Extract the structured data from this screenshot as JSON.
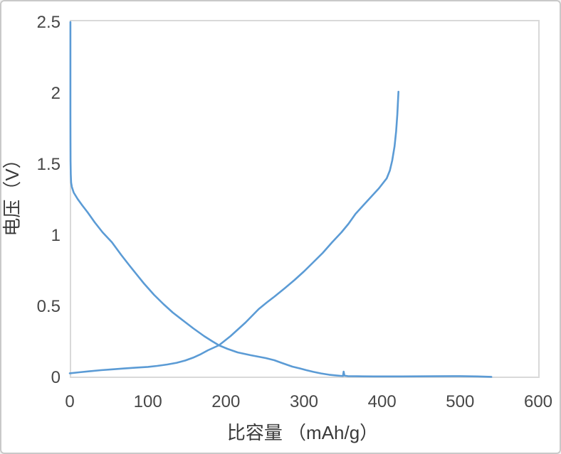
{
  "figure": {
    "background": "#ffffff",
    "frame_border_color": "#c9c9c9"
  },
  "chart_data": {
    "type": "line",
    "title": "",
    "xlabel": "比容量 （mAh/g）",
    "ylabel": "电压（V）",
    "xlim": [
      0,
      600
    ],
    "ylim": [
      0,
      2.5
    ],
    "x_tick_labels": [
      "0",
      "100",
      "200",
      "300",
      "400",
      "500",
      "600"
    ],
    "y_tick_labels": [
      "0",
      "0.5",
      "1",
      "1.5",
      "2",
      "2.5"
    ],
    "grid": false,
    "legend": "none",
    "line_color": "#5B9BD5",
    "plot_border_color": "#D9D9D9",
    "tick_label_color": "#474747",
    "axis_title_color": "#3a3a3a",
    "series": [
      {
        "name": "discharge-curve",
        "description": "Descending curve: drops from 2.5 V near 0 mAh/g, crosses the rising curve at ~192 mAh/g / 0.23 V, plateaus near 0 V with a tiny blip at ~351 mAh/g, ends at ~540 mAh/g",
        "points": [
          [
            0.8,
            2.5
          ],
          [
            0.8,
            2.15
          ],
          [
            0.8,
            1.85
          ],
          [
            0.9,
            1.65
          ],
          [
            1.0,
            1.52
          ],
          [
            1.3,
            1.43
          ],
          [
            1.7,
            1.37
          ],
          [
            2.6,
            1.34
          ],
          [
            5,
            1.3
          ],
          [
            10,
            1.255
          ],
          [
            16,
            1.21
          ],
          [
            23,
            1.16
          ],
          [
            32,
            1.09
          ],
          [
            42,
            1.02
          ],
          [
            54,
            0.95
          ],
          [
            66,
            0.86
          ],
          [
            76,
            0.79
          ],
          [
            84,
            0.735
          ],
          [
            95,
            0.66
          ],
          [
            108,
            0.58
          ],
          [
            120,
            0.515
          ],
          [
            132,
            0.455
          ],
          [
            145,
            0.4
          ],
          [
            158,
            0.345
          ],
          [
            172,
            0.29
          ],
          [
            182,
            0.255
          ],
          [
            191,
            0.225
          ],
          [
            202,
            0.2
          ],
          [
            215,
            0.175
          ],
          [
            232,
            0.155
          ],
          [
            251,
            0.135
          ],
          [
            262,
            0.12
          ],
          [
            272,
            0.1
          ],
          [
            285,
            0.075
          ],
          [
            295,
            0.062
          ],
          [
            303,
            0.05
          ],
          [
            312,
            0.038
          ],
          [
            322,
            0.027
          ],
          [
            332,
            0.018
          ],
          [
            341,
            0.013
          ],
          [
            347,
            0.01
          ],
          [
            350,
            0.009
          ],
          [
            350.8,
            0.04
          ],
          [
            351.8,
            0.012
          ],
          [
            356,
            0.008
          ],
          [
            368,
            0.007
          ],
          [
            390,
            0.006
          ],
          [
            425,
            0.006
          ],
          [
            465,
            0.007
          ],
          [
            500,
            0.008
          ],
          [
            522,
            0.006
          ],
          [
            540,
            0.003
          ]
        ]
      },
      {
        "name": "charge-curve",
        "description": "Ascending curve: starts at ~0.03 V, rises through 0.23 V at ~191 mAh/g, steepens and ends at 2.0 V at ~421 mAh/g",
        "points": [
          [
            0,
            0.028
          ],
          [
            12,
            0.035
          ],
          [
            25,
            0.042
          ],
          [
            40,
            0.05
          ],
          [
            55,
            0.056
          ],
          [
            70,
            0.062
          ],
          [
            85,
            0.068
          ],
          [
            100,
            0.073
          ],
          [
            112,
            0.08
          ],
          [
            125,
            0.09
          ],
          [
            137,
            0.102
          ],
          [
            148,
            0.118
          ],
          [
            158,
            0.138
          ],
          [
            168,
            0.163
          ],
          [
            177,
            0.19
          ],
          [
            185,
            0.21
          ],
          [
            191,
            0.225
          ],
          [
            198,
            0.255
          ],
          [
            206,
            0.29
          ],
          [
            215,
            0.335
          ],
          [
            225,
            0.385
          ],
          [
            234,
            0.435
          ],
          [
            242,
            0.48
          ],
          [
            252,
            0.525
          ],
          [
            262,
            0.567
          ],
          [
            275,
            0.625
          ],
          [
            288,
            0.685
          ],
          [
            300,
            0.745
          ],
          [
            312,
            0.81
          ],
          [
            324,
            0.875
          ],
          [
            336,
            0.95
          ],
          [
            348,
            1.02
          ],
          [
            357,
            1.08
          ],
          [
            366,
            1.15
          ],
          [
            376,
            1.21
          ],
          [
            386,
            1.27
          ],
          [
            396,
            1.33
          ],
          [
            406,
            1.4
          ],
          [
            410,
            1.455
          ],
          [
            413,
            1.525
          ],
          [
            416,
            1.625
          ],
          [
            418,
            1.73
          ],
          [
            419.5,
            1.85
          ],
          [
            420.5,
            1.95
          ],
          [
            421,
            2.01
          ]
        ]
      }
    ]
  }
}
